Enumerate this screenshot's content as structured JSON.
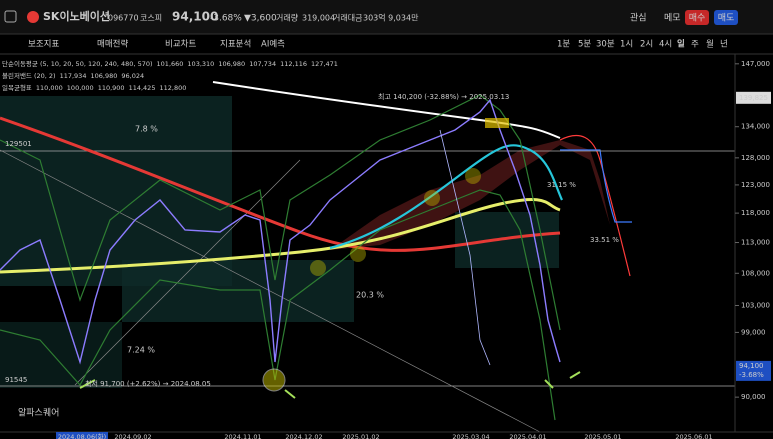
{
  "header": {
    "stock_name": "SK이노베이션",
    "code": "096770",
    "market": "코스피",
    "price": "94,100",
    "change_pct": "-3.68%",
    "change": "▼3,600",
    "volume_label": "거래량",
    "volume": "319,004",
    "amount_label": "거래대금",
    "amount": "303억 9,034만",
    "buttons": [
      "관심",
      "메모",
      "매수",
      "매도"
    ]
  },
  "toolbar": {
    "tools": [
      "보조지표",
      "매매전략",
      "비교차트",
      "지표분석",
      "AI예측"
    ],
    "periods": [
      "1분",
      "5분",
      "30분",
      "1시",
      "2시",
      "4시",
      "일",
      "주",
      "월",
      "년"
    ]
  },
  "legends": [
    {
      "name": "단순이동평균 (5, 10, 20, 50, 120, 240, 480, 570)",
      "values": [
        "101,660",
        "103,310",
        "106,980",
        "107,734",
        "112,116",
        "127,471"
      ],
      "colors": [
        "#7b68ee",
        "#ff8c00",
        "#ffd700",
        "#00bcd4",
        "#cddc39",
        "#ff4444"
      ]
    },
    {
      "name": "볼린저밴드 (20, 2)",
      "values": [
        "117,934",
        "106,980",
        "96,024"
      ],
      "colors": [
        "#4caf50",
        "#ffd700",
        "#4caf50"
      ]
    },
    {
      "name": "일목균형표",
      "values": [
        "110,000",
        "100,000",
        "110,900",
        "114,425",
        "112,800"
      ],
      "colors": [
        "#ffd700",
        "#ffffff",
        "#9e9e9e",
        "#ff6b6b",
        "#5c8dff"
      ]
    }
  ],
  "price_axis": {
    "log": true,
    "ylim": [
      85500,
      148700
    ],
    "ticks": [
      {
        "value": 147000,
        "label": "147,000"
      },
      {
        "value": 134000,
        "label": "134,000"
      },
      {
        "value": 128000,
        "label": "128,000"
      },
      {
        "value": 123000,
        "label": "123,000"
      },
      {
        "value": 118000,
        "label": "118,000"
      },
      {
        "value": 113000,
        "label": "113,000"
      },
      {
        "value": 108000,
        "label": "108,000"
      },
      {
        "value": 103000,
        "label": "103,000"
      },
      {
        "value": 99000,
        "label": "99,000"
      },
      {
        "value": 90000,
        "label": "90,000"
      }
    ],
    "high_tag": {
      "value": 139825,
      "label": "139,825"
    },
    "last_tag": {
      "value": 94100,
      "label": "94,100",
      "change": "-3.68%"
    }
  },
  "date_labels": [
    "2024.08.06(화)",
    "2024.09.02",
    "2024.11.01",
    "2024.12.02",
    "2025.01.02",
    "2025.03.04",
    "2025.04.01",
    "2025.05.01",
    "2025.06.01"
  ],
  "annotations": {
    "high": "최고 140,200 (-32.88%) → 2025.03.13",
    "low": "최저 91,700 (+2.62%) → 2024.08.05",
    "level_top": "129501",
    "level_bottom": "91545",
    "pct_1": "7.8 %",
    "pct_2": "20.3 %",
    "pct_3": "7.24 %",
    "pct_4": "31.15 %",
    "pct_5": "33.51 %",
    "watermark": "알파스퀘어"
  }
}
